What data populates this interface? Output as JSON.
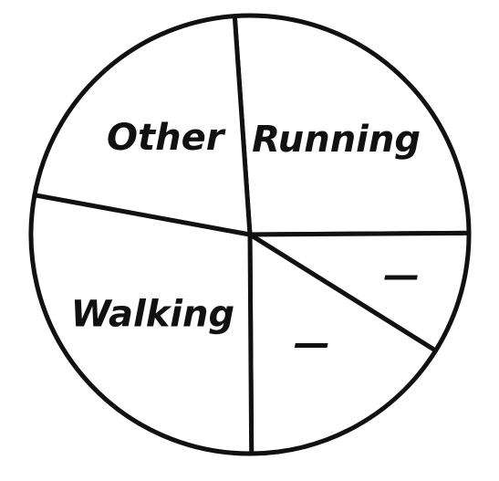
{
  "chart_data": {
    "type": "pie",
    "categories": [
      "Running",
      "—",
      "—",
      "Walking",
      "Other"
    ],
    "values": [
      26,
      9,
      16,
      28,
      21
    ],
    "color": "#ffffff",
    "startangle": -4,
    "direction": "clockwise"
  }
}
